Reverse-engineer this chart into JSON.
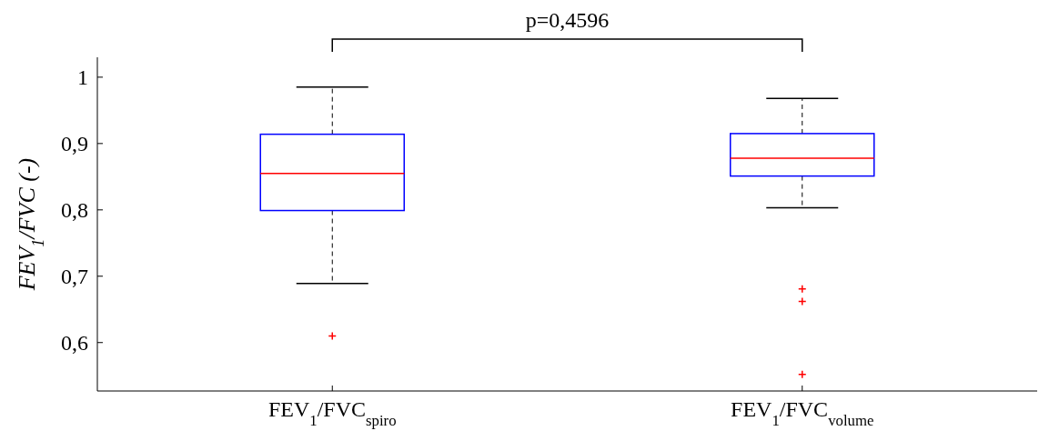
{
  "chart_data": {
    "type": "box",
    "ylabel": "FEV$_{1}$/FVC (-)",
    "categories": [
      "FEV$_{1}$/FVC$_{spiro}$",
      "FEV$_{1}$/FVC$_{volume}$"
    ],
    "boxes": [
      {
        "low": 0.689,
        "q1": 0.799,
        "median": 0.855,
        "q3": 0.914,
        "high": 0.985,
        "outliers": [
          0.61
        ]
      },
      {
        "low": 0.803,
        "q1": 0.851,
        "median": 0.878,
        "q3": 0.915,
        "high": 0.968,
        "outliers": [
          0.681,
          0.662,
          0.552
        ]
      }
    ],
    "ylim": [
      0.527,
      1.03
    ],
    "yticks": [
      {
        "value": 0.6,
        "label": "0,6"
      },
      {
        "value": 0.7,
        "label": "0,7"
      },
      {
        "value": 0.8,
        "label": "0,8"
      },
      {
        "value": 0.9,
        "label": "0,9"
      },
      1
    ],
    "annotations": [
      "p=0,4596"
    ],
    "grid": false
  }
}
